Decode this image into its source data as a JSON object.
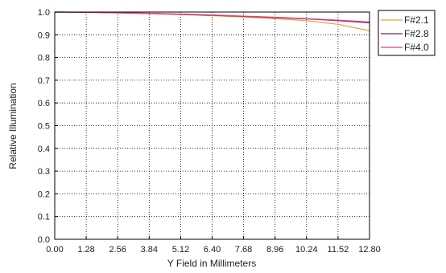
{
  "chart_data": {
    "type": "line",
    "xlabel": "Y Field in Millimeters",
    "ylabel": "Relative Illumination",
    "x_ticks": [
      "0.00",
      "1.28",
      "2.56",
      "3.84",
      "5.12",
      "6.40",
      "7.68",
      "8.96",
      "10.24",
      "11.52",
      "12.80"
    ],
    "y_ticks": [
      "0.0",
      "0.1",
      "0.2",
      "0.3",
      "0.4",
      "0.5",
      "0.6",
      "0.7",
      "0.8",
      "0.9",
      "1.0"
    ],
    "xlim": [
      0,
      12.8
    ],
    "ylim": [
      0,
      1.0
    ],
    "grid": true,
    "legend_position": "top-right-outside",
    "x": [
      0,
      1.28,
      2.56,
      3.84,
      5.12,
      6.4,
      7.68,
      8.96,
      10.24,
      11.52,
      12.8
    ],
    "series": [
      {
        "name": "F#2.1",
        "color": "#e8a43c",
        "values": [
          1.0,
          0.999,
          0.996,
          0.993,
          0.989,
          0.984,
          0.978,
          0.971,
          0.962,
          0.946,
          0.918
        ]
      },
      {
        "name": "F#2.8",
        "color": "#7a1f6e",
        "values": [
          1.0,
          0.999,
          0.997,
          0.994,
          0.99,
          0.986,
          0.981,
          0.976,
          0.97,
          0.962,
          0.953
        ]
      },
      {
        "name": "F#4.0",
        "color": "#e0407a",
        "values": [
          1.0,
          0.999,
          0.997,
          0.994,
          0.991,
          0.987,
          0.982,
          0.977,
          0.971,
          0.964,
          0.956
        ]
      }
    ]
  }
}
